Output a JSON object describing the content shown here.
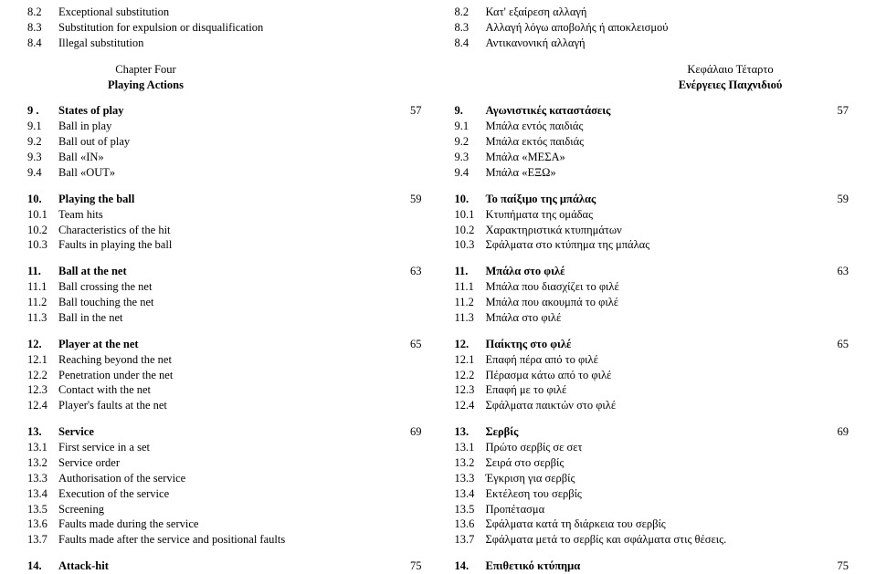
{
  "left": {
    "pre": [
      {
        "num": "8.2",
        "txt": "Exceptional substitution"
      },
      {
        "num": "8.3",
        "txt": "Substitution for expulsion or disqualification"
      },
      {
        "num": "8.4",
        "txt": "Illegal substitution"
      }
    ],
    "chapter": {
      "line1": "Chapter Four",
      "line2": "Playing Actions"
    },
    "sections": [
      {
        "rows": [
          {
            "num": "9 .",
            "txt": "States of play",
            "bold": true,
            "pg": "57"
          },
          {
            "num": "9.1",
            "txt": "Ball in play"
          },
          {
            "num": "9.2",
            "txt": "Ball out of play"
          },
          {
            "num": "9.3",
            "txt": "Ball «IN»"
          },
          {
            "num": "9.4",
            "txt": "Ball «OUT»"
          }
        ]
      },
      {
        "rows": [
          {
            "num": "10.",
            "txt": "Playing the ball",
            "bold": true,
            "pg": "59"
          },
          {
            "num": "10.1",
            "txt": "Team hits"
          },
          {
            "num": "10.2",
            "txt": "Characteristics of the hit"
          },
          {
            "num": "10.3",
            "txt": "Faults in playing the ball"
          }
        ]
      },
      {
        "rows": [
          {
            "num": "11.",
            "txt": "Ball at the net",
            "bold": true,
            "pg": "63"
          },
          {
            "num": "11.1",
            "txt": "Ball crossing the net"
          },
          {
            "num": "11.2",
            "txt": "Ball touching the net"
          },
          {
            "num": "11.3",
            "txt": "Ball in the net"
          }
        ]
      },
      {
        "rows": [
          {
            "num": "12.",
            "txt": "Player at the net",
            "bold": true,
            "pg": "65"
          },
          {
            "num": "12.1",
            "txt": "Reaching beyond the net"
          },
          {
            "num": "12.2",
            "txt": "Penetration under the net"
          },
          {
            "num": "12.3",
            "txt": "Contact with the net"
          },
          {
            "num": "12.4",
            "txt": "Player's faults at the net"
          }
        ]
      },
      {
        "rows": [
          {
            "num": "13.",
            "txt": "Service",
            "bold": true,
            "pg": "69"
          },
          {
            "num": "13.1",
            "txt": "First service in a set"
          },
          {
            "num": "13.2",
            "txt": "Service order"
          },
          {
            "num": "13.3",
            "txt": "Authorisation of the service"
          },
          {
            "num": "13.4",
            "txt": "Execution of the service"
          },
          {
            "num": "13.5",
            "txt": "Screening"
          },
          {
            "num": "13.6",
            "txt": "Faults made during the service"
          },
          {
            "num": "13.7",
            "txt": "Faults made after the service and positional faults"
          }
        ]
      },
      {
        "rows": [
          {
            "num": "14.",
            "txt": "Attack-hit",
            "bold": true,
            "pg": "75"
          }
        ]
      }
    ]
  },
  "right": {
    "pre": [
      {
        "num": "8.2",
        "txt": "Κατ' εξαίρεση αλλαγή"
      },
      {
        "num": "8.3",
        "txt": "Αλλαγή λόγω αποβολής ή αποκλεισμού"
      },
      {
        "num": "8.4",
        "txt": "Αντικανονική αλλαγή"
      }
    ],
    "chapter": {
      "line1": "Κεφάλαιο Τέταρτο",
      "line2": "Ενέργειες Παιχνιδιού"
    },
    "sections": [
      {
        "rows": [
          {
            "num": "9.",
            "txt": "Αγωνιστικές καταστάσεις",
            "bold": true,
            "pg": "57"
          },
          {
            "num": "9.1",
            "txt": "Μπάλα εντός παιδιάς"
          },
          {
            "num": "9.2",
            "txt": "Μπάλα εκτός παιδιάς"
          },
          {
            "num": "9.3",
            "txt": "Μπάλα «ΜΕΣΑ»"
          },
          {
            "num": "9.4",
            "txt": "Μπάλα «ΕΞΩ»"
          }
        ]
      },
      {
        "rows": [
          {
            "num": "10.",
            "txt": "Το παίξιμο της μπάλας",
            "bold": true,
            "pg": "59"
          },
          {
            "num": "10.1",
            "txt": "Κτυπήματα της ομάδας"
          },
          {
            "num": "10.2",
            "txt": "Χαρακτηριστικά κτυπημάτων"
          },
          {
            "num": "10.3",
            "txt": "Σφάλματα στο κτύπημα της μπάλας"
          }
        ]
      },
      {
        "rows": [
          {
            "num": "11.",
            "txt": "Μπάλα στο φιλέ",
            "bold": true,
            "pg": "63"
          },
          {
            "num": "11.1",
            "txt": "Μπάλα που διασχίζει το φιλέ"
          },
          {
            "num": "11.2",
            "txt": "Μπάλα που ακουμπά το φιλέ"
          },
          {
            "num": "11.3",
            "txt": "Μπάλα στο φιλέ"
          }
        ]
      },
      {
        "rows": [
          {
            "num": "12.",
            "txt": "Παίκτης στο φιλέ",
            "bold": true,
            "pg": "65"
          },
          {
            "num": "12.1",
            "txt": "Επαφή πέρα από το φιλέ"
          },
          {
            "num": "12.2",
            "txt": "Πέρασμα κάτω από το φιλέ"
          },
          {
            "num": "12.3",
            "txt": "Επαφή με το φιλέ"
          },
          {
            "num": "12.4",
            "txt": "Σφάλματα παικτών στο φιλέ"
          }
        ]
      },
      {
        "rows": [
          {
            "num": "13.",
            "txt": "Σερβίς",
            "bold": true,
            "pg": "69"
          },
          {
            "num": "13.1",
            "txt": "Πρώτο σερβίς σε σετ"
          },
          {
            "num": "13.2",
            "txt": "Σειρά στο σερβίς"
          },
          {
            "num": "13.3",
            "txt": "Έγκριση για σερβίς"
          },
          {
            "num": "13.4",
            "txt": "Εκτέλεση του σερβίς"
          },
          {
            "num": "13.5",
            "txt": "Προπέτασμα"
          },
          {
            "num": "13.6",
            "txt": "Σφάλματα κατά τη διάρκεια του σερβίς"
          },
          {
            "num": "13.7",
            "txt": "Σφάλματα μετά το σερβίς και σφάλματα στις θέσεις."
          }
        ]
      },
      {
        "rows": [
          {
            "num": "14.",
            "txt": "Επιθετικό κτύπημα",
            "bold": true,
            "pg": "75"
          }
        ]
      }
    ]
  }
}
